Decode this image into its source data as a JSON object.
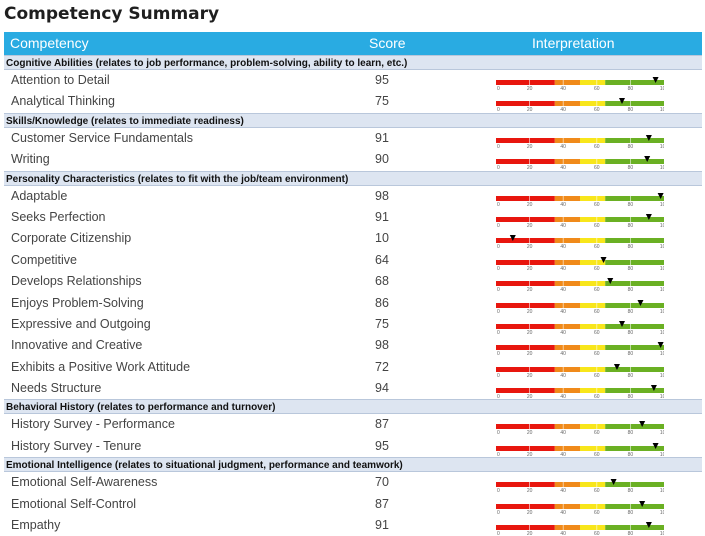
{
  "page_title": "Competency Summary",
  "columns": {
    "competency": "Competency",
    "score": "Score",
    "interpretation": "Interpretation"
  },
  "scale_ticks": [
    "0",
    "20",
    "40",
    "60",
    "80",
    "100"
  ],
  "colors": {
    "header": "#29abe2",
    "red": "#e8160e",
    "orange": "#f08a1a",
    "yellow": "#f8e61b",
    "green": "#6ab023",
    "marker": "#000000"
  },
  "sections": [
    {
      "title": "Cognitive Abilities (relates to job performance, problem-solving, ability to learn, etc.)",
      "items": [
        {
          "name": "Attention to Detail",
          "score": 95
        },
        {
          "name": "Analytical Thinking",
          "score": 75
        }
      ]
    },
    {
      "title": "Skills/Knowledge (relates to immediate readiness)",
      "items": [
        {
          "name": "Customer Service Fundamentals",
          "score": 91
        },
        {
          "name": "Writing",
          "score": 90
        }
      ]
    },
    {
      "title": "Personality Characteristics (relates to fit with the job/team environment)",
      "items": [
        {
          "name": "Adaptable",
          "score": 98
        },
        {
          "name": "Seeks Perfection",
          "score": 91
        },
        {
          "name": "Corporate Citizenship",
          "score": 10
        },
        {
          "name": "Competitive",
          "score": 64
        },
        {
          "name": "Develops Relationships",
          "score": 68
        },
        {
          "name": "Enjoys Problem-Solving",
          "score": 86
        },
        {
          "name": "Expressive and Outgoing",
          "score": 75
        },
        {
          "name": "Innovative and Creative",
          "score": 98
        },
        {
          "name": "Exhibits a Positive Work Attitude",
          "score": 72
        },
        {
          "name": "Needs Structure",
          "score": 94
        }
      ]
    },
    {
      "title": "Behavioral History (relates to performance and turnover)",
      "items": [
        {
          "name": "History Survey - Performance",
          "score": 87
        },
        {
          "name": "History Survey - Tenure",
          "score": 95
        }
      ]
    },
    {
      "title": "Emotional Intelligence (relates to situational judgment, performance and teamwork)",
      "items": [
        {
          "name": "Emotional Self-Awareness",
          "score": 70
        },
        {
          "name": "Emotional Self-Control",
          "score": 87
        },
        {
          "name": "Empathy",
          "score": 91
        }
      ]
    }
  ]
}
